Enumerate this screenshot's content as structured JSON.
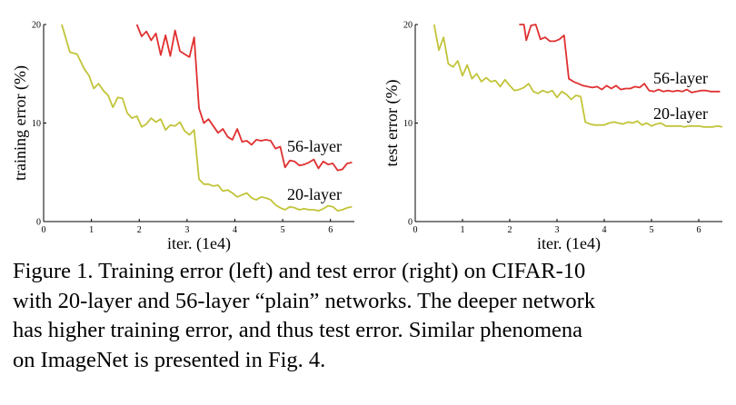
{
  "colors": {
    "series_56": "#e03030",
    "series_20": "#c2c43a",
    "axis": "#000000"
  },
  "chart_data": [
    {
      "type": "line",
      "title": "",
      "xlabel": "iter. (1e4)",
      "ylabel": "training error (%)",
      "xlim": [
        0,
        6.5
      ],
      "ylim": [
        0,
        20
      ],
      "xticks": [
        "0",
        "1",
        "2",
        "3",
        "4",
        "5",
        "6"
      ],
      "yticks": [
        "0",
        "10",
        "20"
      ],
      "grid": false,
      "series": [
        {
          "name": "56-layer",
          "x": [
            1.95,
            2.05,
            2.15,
            2.25,
            2.35,
            2.45,
            2.55,
            2.65,
            2.75,
            2.85,
            2.95,
            3.05,
            3.15,
            3.25,
            3.35,
            3.45,
            3.55,
            3.65,
            3.75,
            3.85,
            3.95,
            4.05,
            4.15,
            4.25,
            4.35,
            4.45,
            4.55,
            4.65,
            4.75,
            4.85,
            4.95,
            5.05,
            5.15,
            5.25,
            5.35,
            5.45,
            5.55,
            5.65,
            5.75,
            5.85,
            5.95,
            6.05,
            6.15,
            6.25,
            6.35,
            6.45
          ],
          "values": [
            20,
            18.8,
            19.3,
            18.4,
            19.1,
            16.9,
            18.9,
            16.8,
            19.4,
            17.3,
            17.0,
            16.7,
            18.7,
            11.5,
            10.0,
            10.4,
            9.7,
            9.0,
            9.4,
            8.6,
            8.3,
            9.4,
            8.1,
            8.2,
            7.8,
            8.3,
            8.2,
            8.3,
            8.2,
            7.4,
            7.6,
            5.5,
            6.2,
            6.1,
            5.7,
            5.8,
            6.0,
            6.3,
            5.4,
            6.1,
            5.8,
            5.9,
            5.2,
            5.3,
            5.9,
            6.0
          ]
        },
        {
          "name": "20-layer",
          "x": [
            0.38,
            0.55,
            0.7,
            0.85,
            0.95,
            1.05,
            1.15,
            1.25,
            1.35,
            1.45,
            1.55,
            1.65,
            1.75,
            1.85,
            1.95,
            2.05,
            2.15,
            2.25,
            2.35,
            2.45,
            2.55,
            2.65,
            2.75,
            2.85,
            2.95,
            3.05,
            3.15,
            3.25,
            3.35,
            3.45,
            3.55,
            3.65,
            3.75,
            3.85,
            3.95,
            4.05,
            4.15,
            4.25,
            4.35,
            4.45,
            4.55,
            4.65,
            4.75,
            4.85,
            4.95,
            5.05,
            5.15,
            5.25,
            5.35,
            5.45,
            5.55,
            5.65,
            5.75,
            5.85,
            5.95,
            6.05,
            6.15,
            6.25,
            6.35,
            6.45
          ],
          "values": [
            20.0,
            17.2,
            17.0,
            15.5,
            14.8,
            13.5,
            14.0,
            13.3,
            12.8,
            11.6,
            12.6,
            12.5,
            11.0,
            10.5,
            10.7,
            9.6,
            9.9,
            10.5,
            10.1,
            10.4,
            9.3,
            9.8,
            9.7,
            10.1,
            9.2,
            8.8,
            9.3,
            4.3,
            3.8,
            3.8,
            3.6,
            3.7,
            3.1,
            3.2,
            2.9,
            2.5,
            2.7,
            2.9,
            2.4,
            2.2,
            2.5,
            2.4,
            2.2,
            1.7,
            1.4,
            1.2,
            1.5,
            1.4,
            1.2,
            1.3,
            1.2,
            1.2,
            1.1,
            1.3,
            1.6,
            1.5,
            1.1,
            1.2,
            1.4,
            1.5
          ]
        }
      ]
    },
    {
      "type": "line",
      "title": "",
      "xlabel": "iter. (1e4)",
      "ylabel": "test error (%)",
      "xlim": [
        0,
        6.5
      ],
      "ylim": [
        0,
        20
      ],
      "xticks": [
        "0",
        "1",
        "2",
        "3",
        "4",
        "5",
        "6"
      ],
      "yticks": [
        "0",
        "10",
        "20"
      ],
      "grid": false,
      "series": [
        {
          "name": "56-layer",
          "x": [
            2.2,
            2.3,
            2.35,
            2.45,
            2.55,
            2.65,
            2.75,
            2.85,
            2.95,
            3.05,
            3.15,
            3.25,
            3.35,
            3.45,
            3.55,
            3.65,
            3.75,
            3.85,
            3.95,
            4.05,
            4.15,
            4.25,
            4.35,
            4.45,
            4.55,
            4.65,
            4.75,
            4.85,
            4.95,
            5.05,
            5.15,
            5.25,
            5.35,
            5.45,
            5.55,
            5.65,
            5.75,
            5.85,
            5.95,
            6.05,
            6.15,
            6.25,
            6.35,
            6.45
          ],
          "values": [
            20,
            20,
            18.4,
            19.9,
            20,
            18.5,
            18.7,
            18.3,
            18.3,
            18.5,
            18.9,
            14.5,
            14.2,
            14.0,
            13.8,
            13.7,
            13.6,
            13.7,
            13.4,
            13.8,
            13.5,
            13.8,
            13.4,
            13.5,
            13.5,
            13.7,
            13.6,
            14.0,
            13.3,
            13.2,
            13.4,
            13.2,
            13.3,
            13.2,
            13.3,
            13.2,
            13.4,
            13.1,
            13.2,
            13.3,
            13.3,
            13.2,
            13.2,
            13.2
          ]
        },
        {
          "name": "20-layer",
          "x": [
            0.4,
            0.5,
            0.6,
            0.7,
            0.8,
            0.9,
            1.0,
            1.1,
            1.2,
            1.3,
            1.4,
            1.5,
            1.6,
            1.7,
            1.8,
            1.9,
            2.0,
            2.1,
            2.2,
            2.3,
            2.4,
            2.5,
            2.6,
            2.7,
            2.8,
            2.9,
            3.0,
            3.1,
            3.2,
            3.3,
            3.4,
            3.5,
            3.6,
            3.7,
            3.8,
            3.9,
            4.0,
            4.1,
            4.2,
            4.3,
            4.4,
            4.5,
            4.6,
            4.7,
            4.8,
            4.9,
            5.0,
            5.1,
            5.2,
            5.3,
            5.4,
            5.5,
            5.6,
            5.7,
            5.8,
            5.9,
            6.0,
            6.1,
            6.2,
            6.3,
            6.4,
            6.5
          ],
          "values": [
            20.0,
            17.4,
            18.7,
            16.0,
            15.7,
            16.3,
            14.8,
            15.9,
            14.5,
            15.0,
            14.2,
            14.6,
            14.2,
            14.3,
            13.7,
            14.4,
            13.8,
            13.3,
            13.4,
            13.6,
            14.0,
            13.2,
            13.0,
            13.3,
            13.1,
            13.3,
            12.6,
            13.2,
            12.9,
            12.4,
            12.8,
            12.7,
            10.1,
            9.9,
            9.8,
            9.8,
            9.8,
            10.0,
            10.1,
            10.0,
            9.9,
            10.1,
            10.0,
            10.2,
            9.8,
            10.0,
            9.7,
            9.9,
            10.0,
            9.7,
            9.7,
            9.7,
            9.7,
            9.6,
            9.7,
            9.7,
            9.7,
            9.6,
            9.6,
            9.6,
            9.7,
            9.6
          ]
        }
      ]
    }
  ],
  "caption": {
    "lines": [
      "Figure 1. Training error (left) and test error (right) on CIFAR-10",
      "with 20-layer and 56-layer “plain” networks. The deeper network",
      "has higher training error, and thus test error.  Similar phenomena",
      "on ImageNet is presented in Fig. 4."
    ]
  }
}
